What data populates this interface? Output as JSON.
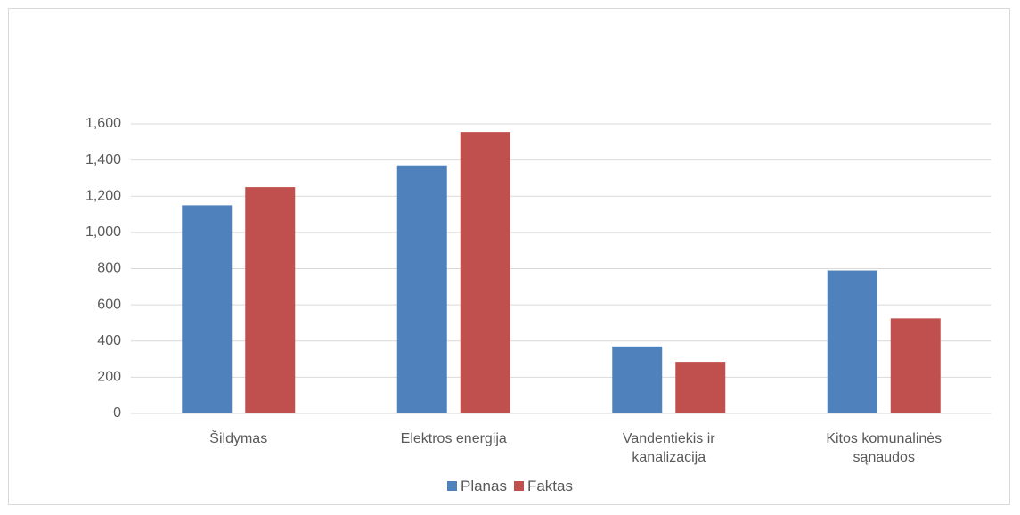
{
  "chart_data": {
    "type": "bar",
    "categories": [
      "Šildymas",
      "Elektros energija",
      "Vandentiekis ir kanalizacija",
      "Kitos komunalinės sąnaudos"
    ],
    "series": [
      {
        "name": "Planas",
        "color": "#4f81bd",
        "values": [
          1150,
          1370,
          370,
          790
        ]
      },
      {
        "name": "Faktas",
        "color": "#c0504d",
        "values": [
          1250,
          1555,
          285,
          525
        ]
      }
    ],
    "ylim": [
      0,
      1600
    ],
    "yticks": [
      0,
      200,
      400,
      600,
      800,
      {
        "value": 1000,
        "label": "1,000"
      },
      {
        "value": 1200,
        "label": "1,200"
      },
      {
        "value": 1400,
        "label": "1,400"
      },
      {
        "value": 1600,
        "label": "1,600"
      }
    ],
    "grid": true,
    "legend": "bottom"
  }
}
